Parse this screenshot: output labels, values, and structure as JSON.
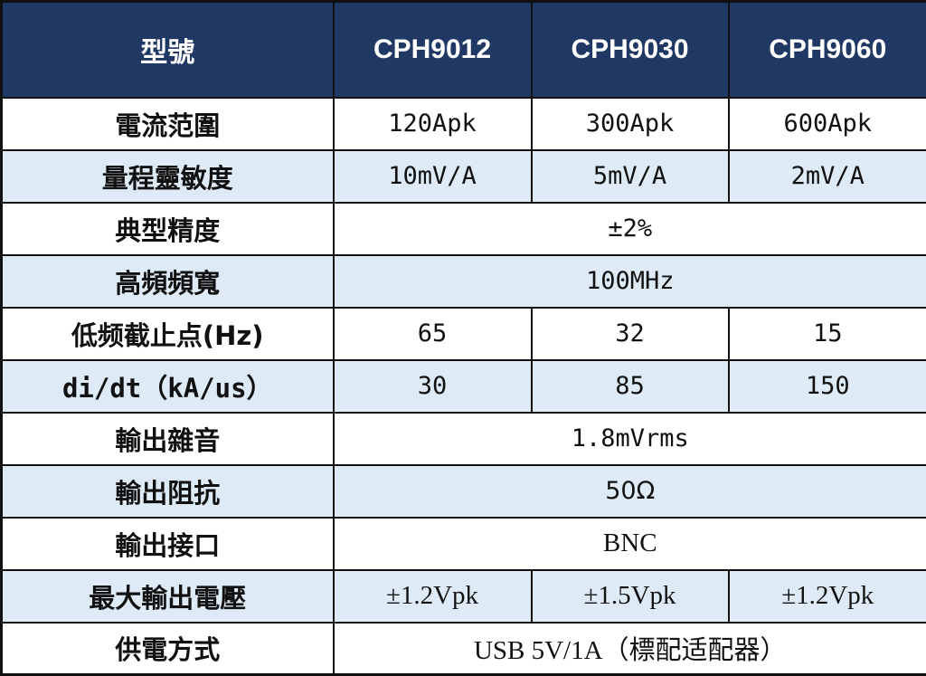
{
  "header": {
    "label": "型號",
    "models": [
      "CPH9012",
      "CPH9030",
      "CPH9060"
    ]
  },
  "rows": [
    {
      "label": "電流范圍",
      "values": [
        "120Apk",
        "300Apk",
        "600Apk"
      ]
    },
    {
      "label": "量程靈敏度",
      "values": [
        "10mV/A",
        "5mV/A",
        "2mV/A"
      ]
    },
    {
      "label": "典型精度",
      "value": "±2%"
    },
    {
      "label": "高頻頻寬",
      "value": "100MHz"
    },
    {
      "label": "低频截止点(Hz)",
      "values": [
        "65",
        "32",
        "15"
      ]
    },
    {
      "label": "di/dt（kA/us）",
      "values": [
        "30",
        "85",
        "150"
      ]
    },
    {
      "label": "輸出雜音",
      "value": "1.8mVrms"
    },
    {
      "label": "輸出阻抗",
      "value": "50Ω"
    },
    {
      "label": "輸出接口",
      "value": "BNC"
    },
    {
      "label": "最大輸出電壓",
      "values": [
        "±1.2Vpk",
        "±1.5Vpk",
        "±1.2Vpk"
      ]
    },
    {
      "label": "供電方式",
      "value": "USB 5V/1A（標配适配器）"
    }
  ],
  "colors": {
    "header_bg": "#1f3864",
    "header_text": "#ffffff",
    "stripe_bg": "#deebf7",
    "row_bg": "#ffffff",
    "border": "#111111"
  }
}
